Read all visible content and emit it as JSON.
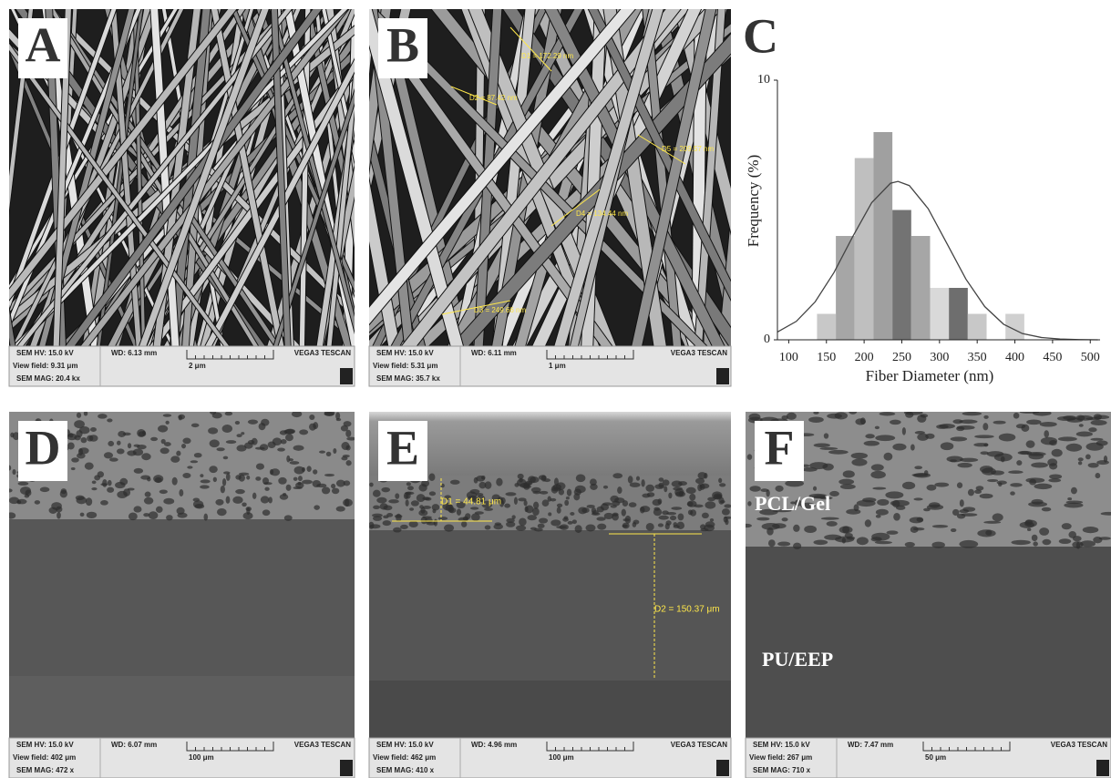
{
  "panels": [
    {
      "letter": "A",
      "hv": "SEM HV: 15.0 kV",
      "wd": "WD: 6.13 mm",
      "view_field": "View field: 9.31 μm",
      "mag": "SEM MAG: 20.4 kx",
      "scale": "2 μm",
      "brand": "VEGA3 TESCAN",
      "annotations": []
    },
    {
      "letter": "B",
      "hv": "SEM HV: 15.0 kV",
      "wd": "WD: 6.11 mm",
      "view_field": "View field: 5.31 μm",
      "mag": "SEM MAG: 35.7 kx",
      "scale": "1 μm",
      "brand": "VEGA3 TESCAN",
      "annotations": [
        "D1 = 172.29 nm",
        "D2 = 87.42 nm",
        "D5 = 209.57 nm",
        "D4 = 134.44 nm",
        "D3 = 249.66 nm"
      ]
    },
    {
      "letter": "D",
      "hv": "SEM HV: 15.0 kV",
      "wd": "WD: 6.07 mm",
      "view_field": "View field: 402 μm",
      "mag": "SEM MAG: 472 x",
      "scale": "100 μm",
      "brand": "VEGA3 TESCAN",
      "annotations": []
    },
    {
      "letter": "E",
      "hv": "SEM HV: 15.0 kV",
      "wd": "WD: 4.96 mm",
      "view_field": "View field: 462 μm",
      "mag": "SEM MAG: 410 x",
      "scale": "100 μm",
      "brand": "VEGA3 TESCAN",
      "annotations": [
        "D1 = 44.81 μm",
        "D2 = 150.37 μm"
      ]
    },
    {
      "letter": "F",
      "hv": "SEM HV: 15.0 kV",
      "wd": "WD: 7.47 mm",
      "view_field": "View field: 267 μm",
      "mag": "SEM MAG: 710 x",
      "scale": "50 μm",
      "brand": "VEGA3 TESCAN",
      "annotations": [
        "PCL/Gel",
        "PU/EEP"
      ]
    }
  ],
  "chart_data": {
    "type": "histogram",
    "panel_label": "C",
    "x_label": "Fiber Diameter (nm)",
    "y_label": "Frequency (%)",
    "bins": [
      137.5,
      162.5,
      187.5,
      212.5,
      237.5,
      262.5,
      287.5,
      312.5,
      337.5,
      362.5,
      387.5,
      412.5
    ],
    "counts": [
      1,
      4,
      7,
      8,
      5,
      4,
      2,
      2,
      1,
      0,
      1
    ],
    "colors": [
      "#c8c8c8",
      "#a6a6a6",
      "#bfbfbf",
      "#a0a0a0",
      "#737373",
      "#a6a6a6",
      "#d9d9d9",
      "#6e6e6e",
      "#c8c8c8",
      "#c8c8c8",
      "#d0d0d0"
    ],
    "curve": {
      "color": "#444444",
      "x": [
        85,
        110,
        135,
        160,
        185,
        210,
        235,
        245,
        260,
        285,
        310,
        335,
        360,
        385,
        410,
        435,
        460,
        485,
        510
      ],
      "values": [
        0.3,
        0.71,
        1.46,
        2.59,
        3.98,
        5.28,
        6.03,
        6.1,
        5.94,
        5.05,
        3.7,
        2.34,
        1.28,
        0.6,
        0.24,
        0.09,
        0.03,
        0.01,
        0
      ]
    },
    "xlim": [
      85,
      513
    ],
    "ylim": [
      0,
      10
    ],
    "xticks": [
      100,
      150,
      200,
      250,
      300,
      350,
      400,
      450,
      500
    ],
    "yticks": [
      0,
      10
    ]
  }
}
